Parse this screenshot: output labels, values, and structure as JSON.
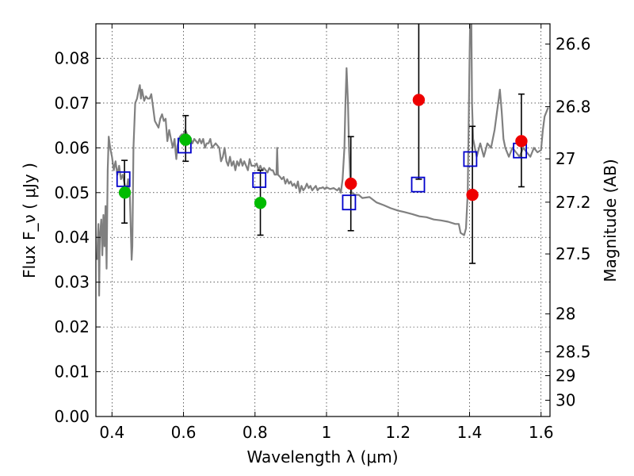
{
  "chart_data": {
    "type": "scatter",
    "xlabel": "Wavelength  λ (μm)",
    "ylabel": "Flux  F_ν  ( μJy )",
    "y2label": "Magnitude (AB)",
    "xlim": [
      0.355,
      1.625
    ],
    "ylim": [
      0.0,
      0.0877
    ],
    "grid": true,
    "x_ticks": [
      0.4,
      0.6,
      0.8,
      1.0,
      1.2,
      1.4,
      1.6
    ],
    "x_tick_labels": [
      "0.4",
      "0.6",
      "0.8",
      "1",
      "1.2",
      "1.4",
      "1.6"
    ],
    "y_ticks": [
      0.0,
      0.01,
      0.02,
      0.03,
      0.04,
      0.05,
      0.06,
      0.07,
      0.08
    ],
    "y_tick_labels": [
      "0.00",
      "0.01",
      "0.02",
      "0.03",
      "0.04",
      "0.05",
      "0.06",
      "0.07",
      "0.08"
    ],
    "y2_ticks": [
      26.6,
      26.8,
      27.0,
      27.2,
      27.5,
      28.0,
      28.5,
      29.0,
      30.0
    ],
    "y2_tick_labels": [
      "26.6",
      "26.8",
      "27",
      "27.2",
      "27.5",
      "28",
      "28.5",
      "29",
      "30"
    ],
    "colors": {
      "model": "#808080",
      "model_photometry": "#0000cc",
      "observed_optical": "#00bb00",
      "observed_nir": "#ee0000",
      "errorbar": "#000000"
    },
    "series": [
      {
        "kind": "line",
        "color": "#808080",
        "points": [
          [
            0.358,
            0.035
          ],
          [
            0.362,
            0.043
          ],
          [
            0.364,
            0.027
          ],
          [
            0.366,
            0.04
          ],
          [
            0.37,
            0.044
          ],
          [
            0.373,
            0.036
          ],
          [
            0.376,
            0.045
          ],
          [
            0.379,
            0.038
          ],
          [
            0.382,
            0.047
          ],
          [
            0.385,
            0.033
          ],
          [
            0.388,
            0.055
          ],
          [
            0.391,
            0.0625
          ],
          [
            0.395,
            0.06
          ],
          [
            0.4,
            0.058
          ],
          [
            0.405,
            0.055
          ],
          [
            0.41,
            0.057
          ],
          [
            0.415,
            0.054
          ],
          [
            0.42,
            0.056
          ],
          [
            0.425,
            0.053
          ],
          [
            0.43,
            0.054
          ],
          [
            0.435,
            0.052
          ],
          [
            0.44,
            0.05
          ],
          [
            0.445,
            0.053
          ],
          [
            0.45,
            0.049
          ],
          [
            0.455,
            0.035
          ],
          [
            0.457,
            0.038
          ],
          [
            0.46,
            0.06
          ],
          [
            0.465,
            0.07
          ],
          [
            0.47,
            0.071
          ],
          [
            0.475,
            0.073
          ],
          [
            0.478,
            0.074
          ],
          [
            0.481,
            0.071
          ],
          [
            0.484,
            0.073
          ],
          [
            0.49,
            0.0705
          ],
          [
            0.495,
            0.0715
          ],
          [
            0.5,
            0.071
          ],
          [
            0.505,
            0.071
          ],
          [
            0.51,
            0.072
          ],
          [
            0.515,
            0.069
          ],
          [
            0.52,
            0.066
          ],
          [
            0.53,
            0.0645
          ],
          [
            0.535,
            0.0665
          ],
          [
            0.54,
            0.0675
          ],
          [
            0.545,
            0.066
          ],
          [
            0.55,
            0.0665
          ],
          [
            0.555,
            0.0615
          ],
          [
            0.56,
            0.064
          ],
          [
            0.565,
            0.062
          ],
          [
            0.57,
            0.06
          ],
          [
            0.575,
            0.062
          ],
          [
            0.578,
            0.059
          ],
          [
            0.58,
            0.0575
          ],
          [
            0.583,
            0.0605
          ],
          [
            0.59,
            0.0625
          ],
          [
            0.595,
            0.063
          ],
          [
            0.6,
            0.063
          ],
          [
            0.605,
            0.064
          ],
          [
            0.61,
            0.063
          ],
          [
            0.62,
            0.062
          ],
          [
            0.625,
            0.061
          ],
          [
            0.63,
            0.062
          ],
          [
            0.64,
            0.061
          ],
          [
            0.645,
            0.062
          ],
          [
            0.65,
            0.061
          ],
          [
            0.655,
            0.062
          ],
          [
            0.66,
            0.06
          ],
          [
            0.665,
            0.061
          ],
          [
            0.67,
            0.061
          ],
          [
            0.675,
            0.062
          ],
          [
            0.68,
            0.06
          ],
          [
            0.69,
            0.061
          ],
          [
            0.7,
            0.06
          ],
          [
            0.705,
            0.057
          ],
          [
            0.71,
            0.058
          ],
          [
            0.715,
            0.06
          ],
          [
            0.72,
            0.057
          ],
          [
            0.725,
            0.056
          ],
          [
            0.73,
            0.058
          ],
          [
            0.735,
            0.056
          ],
          [
            0.74,
            0.057
          ],
          [
            0.745,
            0.055
          ],
          [
            0.75,
            0.057
          ],
          [
            0.755,
            0.056
          ],
          [
            0.76,
            0.0575
          ],
          [
            0.765,
            0.056
          ],
          [
            0.77,
            0.057
          ],
          [
            0.775,
            0.056
          ],
          [
            0.78,
            0.055
          ],
          [
            0.785,
            0.0575
          ],
          [
            0.79,
            0.056
          ],
          [
            0.8,
            0.056
          ],
          [
            0.805,
            0.0565
          ],
          [
            0.81,
            0.055
          ],
          [
            0.815,
            0.056
          ],
          [
            0.82,
            0.055
          ],
          [
            0.825,
            0.0555
          ],
          [
            0.83,
            0.055
          ],
          [
            0.835,
            0.0545
          ],
          [
            0.84,
            0.0555
          ],
          [
            0.845,
            0.055
          ],
          [
            0.85,
            0.055
          ],
          [
            0.855,
            0.054
          ],
          [
            0.86,
            0.054
          ],
          [
            0.862,
            0.06
          ],
          [
            0.864,
            0.054
          ],
          [
            0.87,
            0.0535
          ],
          [
            0.875,
            0.053
          ],
          [
            0.88,
            0.0535
          ],
          [
            0.885,
            0.052
          ],
          [
            0.89,
            0.053
          ],
          [
            0.895,
            0.052
          ],
          [
            0.9,
            0.0525
          ],
          [
            0.905,
            0.0515
          ],
          [
            0.91,
            0.052
          ],
          [
            0.915,
            0.051
          ],
          [
            0.92,
            0.0525
          ],
          [
            0.925,
            0.05
          ],
          [
            0.93,
            0.0515
          ],
          [
            0.935,
            0.0505
          ],
          [
            0.94,
            0.051
          ],
          [
            0.945,
            0.052
          ],
          [
            0.95,
            0.051
          ],
          [
            0.955,
            0.0515
          ],
          [
            0.96,
            0.0505
          ],
          [
            0.965,
            0.051
          ],
          [
            0.97,
            0.0515
          ],
          [
            0.975,
            0.0505
          ],
          [
            0.98,
            0.051
          ],
          [
            0.985,
            0.051
          ],
          [
            0.99,
            0.0512
          ],
          [
            0.995,
            0.0508
          ],
          [
            1.0,
            0.0512
          ],
          [
            1.01,
            0.0508
          ],
          [
            1.02,
            0.051
          ],
          [
            1.03,
            0.0505
          ],
          [
            1.035,
            0.051
          ],
          [
            1.04,
            0.05
          ],
          [
            1.045,
            0.053
          ],
          [
            1.05,
            0.06
          ],
          [
            1.053,
            0.07
          ],
          [
            1.056,
            0.0778
          ],
          [
            1.06,
            0.07
          ],
          [
            1.063,
            0.06
          ],
          [
            1.067,
            0.052
          ],
          [
            1.07,
            0.05
          ],
          [
            1.08,
            0.0495
          ],
          [
            1.09,
            0.0495
          ],
          [
            1.1,
            0.0488
          ],
          [
            1.12,
            0.049
          ],
          [
            1.14,
            0.0478
          ],
          [
            1.16,
            0.0472
          ],
          [
            1.18,
            0.0465
          ],
          [
            1.2,
            0.046
          ],
          [
            1.22,
            0.0456
          ],
          [
            1.24,
            0.0452
          ],
          [
            1.26,
            0.0447
          ],
          [
            1.28,
            0.0445
          ],
          [
            1.3,
            0.044
          ],
          [
            1.32,
            0.0438
          ],
          [
            1.34,
            0.0435
          ],
          [
            1.36,
            0.043
          ],
          [
            1.37,
            0.043
          ],
          [
            1.375,
            0.041
          ],
          [
            1.385,
            0.0405
          ],
          [
            1.39,
            0.042
          ],
          [
            1.395,
            0.05
          ],
          [
            1.4,
            0.08
          ],
          [
            1.402,
            0.09
          ],
          [
            1.405,
            0.09
          ],
          [
            1.407,
            0.07
          ],
          [
            1.41,
            0.062
          ],
          [
            1.42,
            0.058
          ],
          [
            1.43,
            0.061
          ],
          [
            1.44,
            0.058
          ],
          [
            1.45,
            0.061
          ],
          [
            1.46,
            0.06
          ],
          [
            1.47,
            0.064
          ],
          [
            1.48,
            0.07
          ],
          [
            1.485,
            0.073
          ],
          [
            1.49,
            0.068
          ],
          [
            1.495,
            0.062
          ],
          [
            1.5,
            0.06
          ],
          [
            1.51,
            0.058
          ],
          [
            1.52,
            0.06
          ],
          [
            1.53,
            0.059
          ],
          [
            1.54,
            0.058
          ],
          [
            1.55,
            0.06
          ],
          [
            1.56,
            0.059
          ],
          [
            1.57,
            0.058
          ],
          [
            1.58,
            0.06
          ],
          [
            1.59,
            0.059
          ],
          [
            1.6,
            0.0595
          ],
          [
            1.605,
            0.064
          ],
          [
            1.61,
            0.067
          ],
          [
            1.62,
            0.069
          ]
        ]
      },
      {
        "kind": "errorbar",
        "color": "#000000",
        "bars": [
          {
            "x": 0.435,
            "low": 0.0432,
            "high": 0.0572
          },
          {
            "x": 0.606,
            "low": 0.057,
            "high": 0.0672
          },
          {
            "x": 0.815,
            "low": 0.0405,
            "high": 0.055
          },
          {
            "x": 1.068,
            "low": 0.0415,
            "high": 0.0625
          },
          {
            "x": 1.258,
            "low": 0.053,
            "high": 0.088
          },
          {
            "x": 1.408,
            "low": 0.0342,
            "high": 0.0648
          },
          {
            "x": 1.545,
            "low": 0.0513,
            "high": 0.072
          }
        ]
      },
      {
        "kind": "square",
        "color": "#0000cc",
        "points": [
          [
            0.432,
            0.053
          ],
          [
            0.603,
            0.0605
          ],
          [
            0.812,
            0.0528
          ],
          [
            1.063,
            0.0478
          ],
          [
            1.256,
            0.0518
          ],
          [
            1.402,
            0.0575
          ],
          [
            1.541,
            0.0594
          ]
        ]
      },
      {
        "kind": "circle",
        "color": "#00bb00",
        "points": [
          [
            0.436,
            0.05
          ],
          [
            0.606,
            0.0618
          ],
          [
            0.815,
            0.0477
          ]
        ]
      },
      {
        "kind": "circle",
        "color": "#ee0000",
        "points": [
          [
            1.068,
            0.052
          ],
          [
            1.258,
            0.0707
          ],
          [
            1.408,
            0.0495
          ],
          [
            1.545,
            0.0615
          ]
        ]
      }
    ]
  }
}
